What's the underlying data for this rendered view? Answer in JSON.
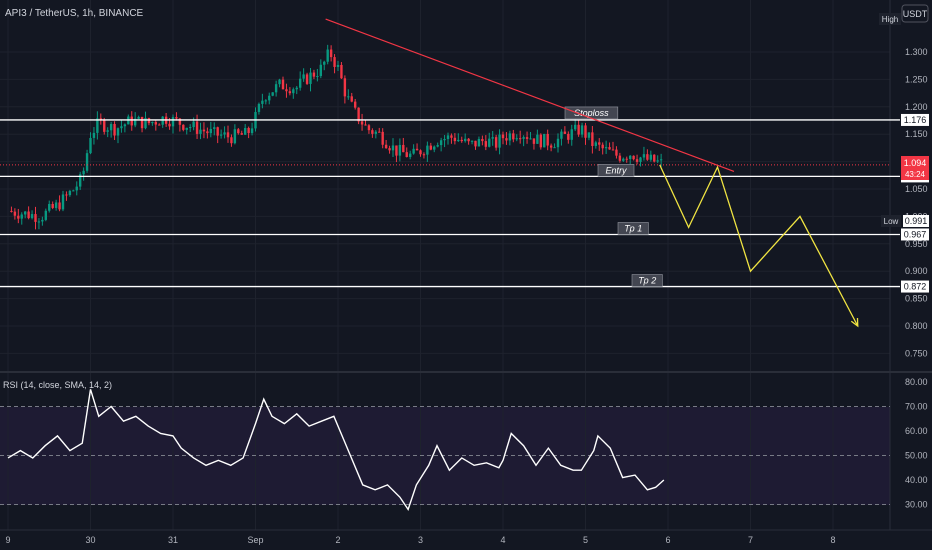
{
  "header": {
    "symbol_title": "API3 / TetherUS, 1h, BINANCE",
    "currency_button": "USDT",
    "high_label": "High",
    "low_label": "Low"
  },
  "price_badges": {
    "current_price": "1.094",
    "countdown": "43:24",
    "high_value": "",
    "low_value": "0.991"
  },
  "chart_data": [
    {
      "type": "candlestick",
      "title": "API3 / TetherUS, 1h, BINANCE",
      "x_ticks": [
        "9",
        "30",
        "31",
        "Sep",
        "2",
        "3",
        "4",
        "5",
        "6",
        "7",
        "8"
      ],
      "y_ticks": [
        1.3,
        1.25,
        1.2,
        1.15,
        1.1,
        1.05,
        1.0,
        0.95,
        0.9,
        0.85,
        0.8,
        0.75
      ],
      "y_range": [
        0.726,
        1.39
      ],
      "current_price": 1.094,
      "levels": [
        {
          "label": "Stoploss",
          "value": 1.176
        },
        {
          "label": "Entry",
          "value": 1.073
        },
        {
          "label": "Tp 1",
          "value": 0.967
        },
        {
          "label": "Tp 2",
          "value": 0.872
        }
      ],
      "level_value_labels": [
        "1.176",
        "1.073",
        "0.967",
        "0.872"
      ],
      "close_path": [
        [
          29.0,
          1.01
        ],
        [
          29.2,
          1.005
        ],
        [
          29.4,
          1.0
        ],
        [
          29.6,
          1.02
        ],
        [
          29.8,
          1.05
        ],
        [
          29.9,
          1.07
        ],
        [
          30.0,
          1.15
        ],
        [
          30.1,
          1.17
        ],
        [
          30.3,
          1.16
        ],
        [
          30.5,
          1.175
        ],
        [
          30.7,
          1.17
        ],
        [
          30.9,
          1.18
        ],
        [
          31.0,
          1.175
        ],
        [
          31.1,
          1.17
        ],
        [
          31.3,
          1.16
        ],
        [
          31.5,
          1.15
        ],
        [
          31.7,
          1.145
        ],
        [
          31.9,
          1.15
        ],
        [
          32.0,
          1.18
        ],
        [
          32.1,
          1.22
        ],
        [
          32.3,
          1.24
        ],
        [
          32.5,
          1.235
        ],
        [
          32.6,
          1.25
        ],
        [
          32.8,
          1.27
        ],
        [
          32.9,
          1.3
        ],
        [
          33.0,
          1.27
        ],
        [
          33.1,
          1.22
        ],
        [
          33.2,
          1.19
        ],
        [
          33.35,
          1.16
        ],
        [
          33.5,
          1.15
        ],
        [
          33.7,
          1.12
        ],
        [
          33.9,
          1.11
        ],
        [
          34.0,
          1.12
        ],
        [
          34.2,
          1.14
        ],
        [
          34.4,
          1.145
        ],
        [
          34.6,
          1.13
        ],
        [
          34.8,
          1.14
        ],
        [
          34.9,
          1.13
        ],
        [
          35.0,
          1.145
        ],
        [
          35.2,
          1.155
        ],
        [
          35.4,
          1.14
        ],
        [
          35.6,
          1.135
        ],
        [
          35.8,
          1.15
        ],
        [
          35.95,
          1.16
        ],
        [
          36.1,
          1.13
        ],
        [
          36.25,
          1.12
        ],
        [
          36.4,
          1.11
        ],
        [
          36.55,
          1.115
        ],
        [
          36.7,
          1.105
        ],
        [
          36.85,
          1.1
        ],
        [
          36.95,
          1.095
        ]
      ],
      "forecast_path": [
        [
          36.9,
          1.094
        ],
        [
          37.25,
          0.98
        ],
        [
          37.6,
          1.09
        ],
        [
          38.0,
          0.9
        ],
        [
          38.6,
          1.0
        ],
        [
          39.3,
          0.8
        ]
      ],
      "trendline": [
        [
          32.85,
          1.36
        ],
        [
          37.8,
          1.082
        ]
      ]
    },
    {
      "type": "line",
      "title": "RSI (14, close, SMA, 14, 2)",
      "y_ticks": [
        80,
        70,
        60,
        50,
        40,
        30
      ],
      "y_range": [
        28,
        81
      ],
      "band": [
        30,
        70
      ],
      "mid": 50,
      "series": [
        {
          "values": [
            [
              29.0,
              49
            ],
            [
              29.15,
              52
            ],
            [
              29.3,
              49
            ],
            [
              29.45,
              54
            ],
            [
              29.6,
              58
            ],
            [
              29.75,
              52
            ],
            [
              29.9,
              55
            ],
            [
              30.0,
              77
            ],
            [
              30.1,
              66
            ],
            [
              30.25,
              70
            ],
            [
              30.4,
              64
            ],
            [
              30.55,
              66
            ],
            [
              30.7,
              62
            ],
            [
              30.85,
              59
            ],
            [
              31.0,
              58
            ],
            [
              31.1,
              53
            ],
            [
              31.25,
              49
            ],
            [
              31.4,
              46
            ],
            [
              31.55,
              48
            ],
            [
              31.7,
              46
            ],
            [
              31.85,
              49
            ],
            [
              32.0,
              63
            ],
            [
              32.1,
              73
            ],
            [
              32.2,
              66
            ],
            [
              32.35,
              63
            ],
            [
              32.5,
              67
            ],
            [
              32.65,
              62
            ],
            [
              32.8,
              64
            ],
            [
              32.95,
              66
            ],
            [
              33.05,
              58
            ],
            [
              33.15,
              50
            ],
            [
              33.3,
              38
            ],
            [
              33.45,
              36
            ],
            [
              33.6,
              38
            ],
            [
              33.75,
              33
            ],
            [
              33.85,
              28
            ],
            [
              33.95,
              38
            ],
            [
              34.1,
              46
            ],
            [
              34.2,
              54
            ],
            [
              34.35,
              44
            ],
            [
              34.5,
              49
            ],
            [
              34.65,
              46
            ],
            [
              34.8,
              47
            ],
            [
              34.95,
              45
            ],
            [
              35.0,
              48
            ],
            [
              35.1,
              59
            ],
            [
              35.25,
              54
            ],
            [
              35.4,
              46
            ],
            [
              35.55,
              53
            ],
            [
              35.7,
              46
            ],
            [
              35.85,
              44
            ],
            [
              35.95,
              44
            ],
            [
              36.1,
              52
            ],
            [
              36.15,
              58
            ],
            [
              36.3,
              53
            ],
            [
              36.45,
              41
            ],
            [
              36.6,
              42
            ],
            [
              36.75,
              36
            ],
            [
              36.85,
              37
            ],
            [
              36.95,
              40
            ]
          ]
        }
      ]
    }
  ]
}
